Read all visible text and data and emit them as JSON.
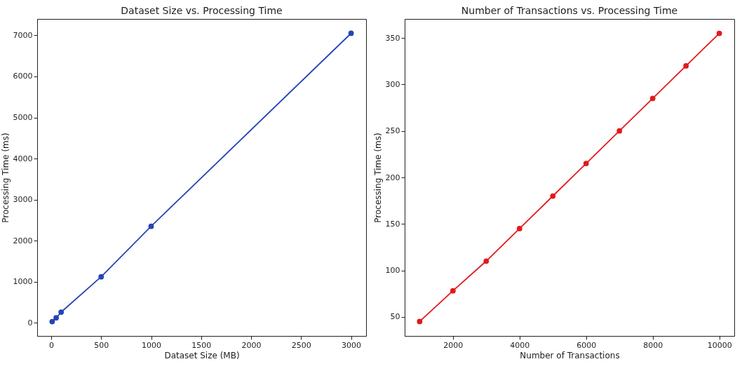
{
  "chart_data": [
    {
      "type": "line",
      "title": "Dataset Size vs. Processing Time",
      "xlabel": "Dataset Size (MB)",
      "ylabel": "Processing Time (ms)",
      "x": [
        10,
        50,
        100,
        500,
        1000,
        3000
      ],
      "series": [
        {
          "color": "#2545b5",
          "values": [
            30,
            120,
            260,
            1120,
            2350,
            7050
          ]
        }
      ],
      "xlim": [
        -140,
        3150
      ],
      "ylim": [
        -320,
        7400
      ],
      "xticks": [
        0,
        500,
        1000,
        1500,
        2000,
        2500,
        3000
      ],
      "yticks": [
        0,
        1000,
        2000,
        3000,
        4000,
        5000,
        6000,
        7000
      ],
      "marker": "circle",
      "grid": false
    },
    {
      "type": "line",
      "title": "Number of Transactions vs. Processing Time",
      "xlabel": "Number of Transactions",
      "ylabel": "Processing Time (ms)",
      "x": [
        1000,
        2000,
        3000,
        4000,
        5000,
        6000,
        7000,
        8000,
        9000,
        10000
      ],
      "series": [
        {
          "color": "#e3191c",
          "values": [
            45,
            78,
            110,
            145,
            180,
            215,
            250,
            285,
            320,
            355
          ]
        }
      ],
      "xlim": [
        550,
        10450
      ],
      "ylim": [
        29.5,
        370.5
      ],
      "xticks": [
        2000,
        4000,
        6000,
        8000,
        10000
      ],
      "yticks": [
        50,
        100,
        150,
        200,
        250,
        300,
        350
      ],
      "marker": "circle",
      "grid": false
    }
  ]
}
